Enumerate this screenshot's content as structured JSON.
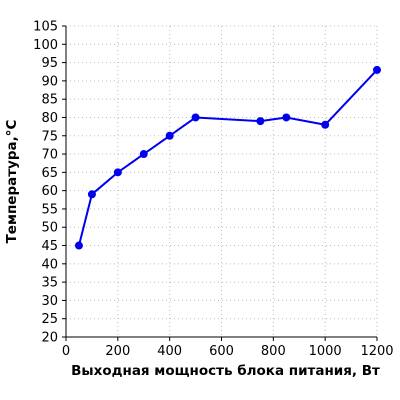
{
  "chart_data": {
    "type": "line",
    "title": "",
    "xlabel": "Выходная мощность блока питания, Вт",
    "ylabel": "Температура,°C",
    "xlim": [
      0,
      1200
    ],
    "ylim": [
      20,
      105
    ],
    "xticks": [
      0,
      200,
      400,
      600,
      800,
      1000,
      1200
    ],
    "yticks": [
      20,
      25,
      30,
      35,
      40,
      45,
      50,
      55,
      60,
      65,
      70,
      75,
      80,
      85,
      90,
      95,
      100,
      105
    ],
    "grid": true,
    "series": [
      {
        "x": [
          50,
          100,
          200,
          300,
          400,
          500,
          750,
          850,
          1000,
          1200
        ],
        "y": [
          45,
          59,
          65,
          70,
          75,
          80,
          79,
          80,
          78,
          93
        ],
        "color": "#0000ee"
      }
    ]
  }
}
